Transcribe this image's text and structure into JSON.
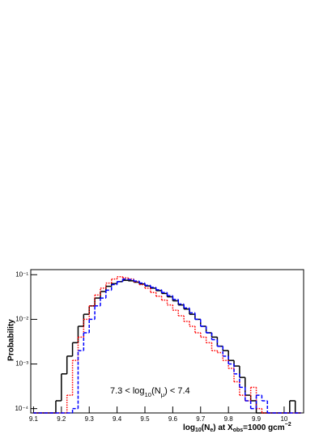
{
  "chart_data": {
    "type": "histogram",
    "y_label": "Probability",
    "x_label_parts": [
      "log",
      "10",
      "(N",
      "e",
      ")  at  X",
      "obs",
      "=1000 gcm",
      "−2"
    ],
    "annotation_parts": [
      "7.3 < log",
      "10",
      "(N",
      "μ",
      ") < 7.4"
    ],
    "bins": [
      9.1,
      9.12,
      9.14,
      9.16,
      9.18,
      9.2,
      9.22,
      9.24,
      9.26,
      9.28,
      9.3,
      9.32,
      9.34,
      9.36,
      9.38,
      9.4,
      9.42,
      9.44,
      9.46,
      9.48,
      9.5,
      9.52,
      9.54,
      9.56,
      9.58,
      9.6,
      9.62,
      9.64,
      9.66,
      9.68,
      9.7,
      9.72,
      9.74,
      9.76,
      9.78,
      9.8,
      9.82,
      9.84,
      9.86,
      9.88,
      9.9,
      9.92,
      9.94,
      9.96,
      9.98,
      10.0,
      10.02,
      10.04,
      10.06
    ],
    "series": [
      {
        "color": "#000000",
        "line_style": "solid",
        "values": [
          0,
          0,
          0,
          0,
          0.00015,
          0.0006,
          0.0015,
          0.003,
          0.007,
          0.013,
          0.02,
          0.03,
          0.042,
          0.055,
          0.063,
          0.07,
          0.075,
          0.073,
          0.068,
          0.062,
          0.056,
          0.05,
          0.044,
          0.038,
          0.032,
          0.026,
          0.021,
          0.017,
          0.013,
          0.01,
          0.007,
          0.005,
          0.004,
          0.0025,
          0.002,
          0.0012,
          0.0009,
          0.0005,
          0.0002,
          0.00015,
          0,
          0,
          0,
          0,
          0,
          0,
          0.00015,
          0
        ]
      },
      {
        "color": "#ff0000",
        "line_style": "dotted",
        "values": [
          0,
          0,
          0,
          0,
          0,
          0,
          0.0002,
          0.0012,
          0.004,
          0.01,
          0.02,
          0.035,
          0.05,
          0.065,
          0.08,
          0.09,
          0.085,
          0.08,
          0.07,
          0.06,
          0.05,
          0.04,
          0.033,
          0.027,
          0.021,
          0.016,
          0.012,
          0.009,
          0.007,
          0.005,
          0.004,
          0.003,
          0.002,
          0.0018,
          0.0012,
          0.0008,
          0.0004,
          0.0002,
          0.00015,
          0.0003,
          0.0001,
          0,
          0,
          0,
          0,
          0,
          0,
          0
        ]
      },
      {
        "color": "#0000ff",
        "line_style": "dashed",
        "values": [
          0,
          0,
          0,
          0,
          0,
          0,
          0,
          0.0001,
          0.002,
          0.005,
          0.01,
          0.02,
          0.03,
          0.045,
          0.06,
          0.07,
          0.08,
          0.078,
          0.072,
          0.065,
          0.058,
          0.052,
          0.046,
          0.04,
          0.034,
          0.028,
          0.022,
          0.018,
          0.014,
          0.01,
          0.007,
          0.005,
          0.0035,
          0.0025,
          0.0015,
          0.001,
          0.0006,
          0.0003,
          0.00015,
          0.0001,
          0.0002,
          0.00015,
          0,
          0,
          0,
          0,
          0,
          0
        ]
      }
    ],
    "xlim": [
      9.09,
      10.07
    ],
    "xticks": [
      9.1,
      9.2,
      9.3,
      9.4,
      9.5,
      9.6,
      9.7,
      9.8,
      9.9,
      10
    ],
    "ylim": [
      8e-05,
      0.13
    ],
    "y_log": true,
    "yticks": [
      {
        "value": 0.0001,
        "label": "10⁻⁴"
      },
      {
        "value": 0.001,
        "label": "10⁻³"
      },
      {
        "value": 0.01,
        "label": "10⁻²"
      },
      {
        "value": 0.1,
        "label": "10⁻¹"
      }
    ]
  }
}
